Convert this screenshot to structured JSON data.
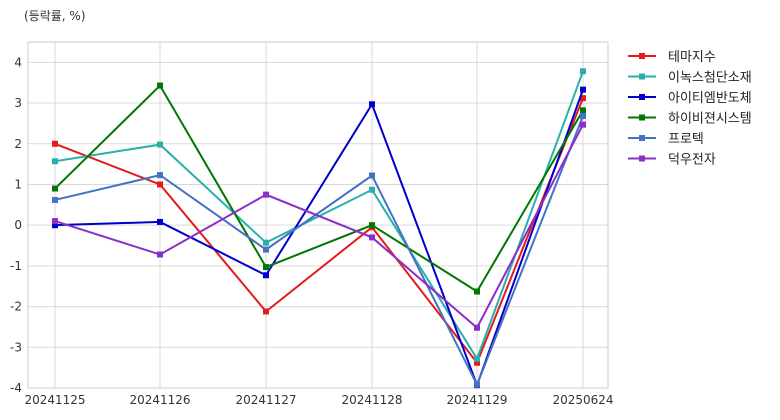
{
  "chart_data": {
    "type": "line",
    "ylabel": "(등락률, %)",
    "ylim": [
      -4,
      4.5
    ],
    "yticks": [
      -4,
      -3,
      -2,
      -1,
      0,
      1,
      2,
      3,
      4
    ],
    "categories": [
      "20241125",
      "20241126",
      "20241127",
      "20241128",
      "20241129",
      "20250624"
    ],
    "grid": true,
    "legend_position": "right",
    "series": [
      {
        "name": "테마지수",
        "color": "#e41a1c",
        "values": [
          2.0,
          1.0,
          -2.12,
          -0.05,
          -3.38,
          3.12
        ]
      },
      {
        "name": "이녹스첨단소재",
        "color": "#2ab0aa",
        "values": [
          1.57,
          1.98,
          -0.43,
          0.87,
          -3.28,
          3.78
        ]
      },
      {
        "name": "아이티엠반도체",
        "color": "#0000cc",
        "values": [
          0.0,
          0.08,
          -1.23,
          2.97,
          -3.93,
          3.33
        ]
      },
      {
        "name": "하이비젼시스템",
        "color": "#007700",
        "values": [
          0.9,
          3.43,
          -1.03,
          0.0,
          -1.63,
          2.82
        ]
      },
      {
        "name": "프로텍",
        "color": "#4472c4",
        "values": [
          0.62,
          1.23,
          -0.6,
          1.22,
          -3.92,
          2.68
        ]
      },
      {
        "name": "덕우전자",
        "color": "#8b2fc9",
        "values": [
          0.1,
          -0.72,
          0.75,
          -0.3,
          -2.52,
          2.47
        ]
      }
    ]
  }
}
